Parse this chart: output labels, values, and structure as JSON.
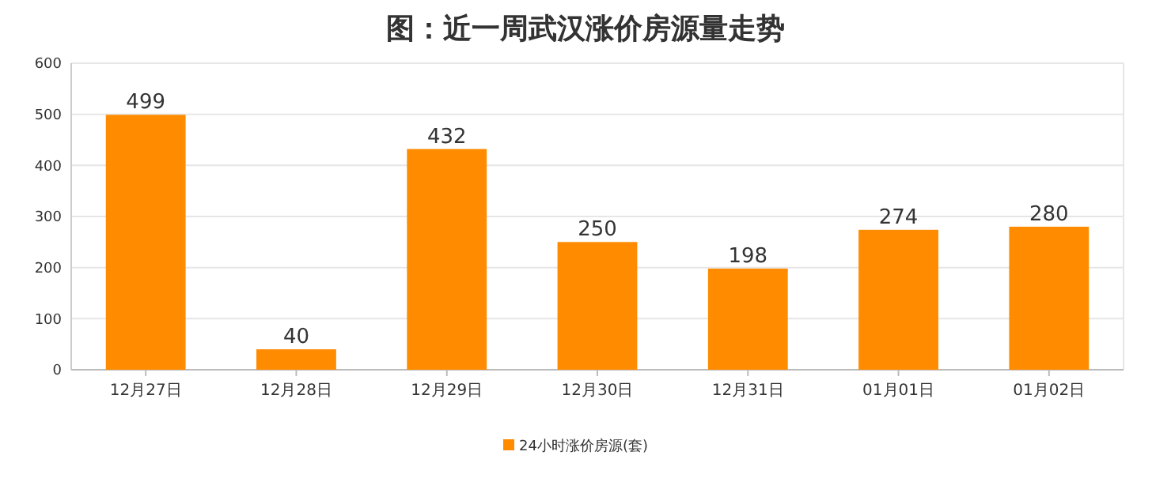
{
  "chart_data": {
    "type": "bar",
    "title": "图：近一周武汉涨价房源量走势",
    "categories": [
      "12月27日",
      "12月28日",
      "12月29日",
      "12月30日",
      "12月31日",
      "01月01日",
      "01月02日"
    ],
    "series": [
      {
        "name": "24小时涨价房源(套)",
        "color": "#ff8c00",
        "values": [
          499,
          40,
          432,
          250,
          198,
          274,
          280
        ]
      }
    ],
    "ylim": [
      0,
      600
    ],
    "yticks": [
      0,
      100,
      200,
      300,
      400,
      500,
      600
    ],
    "grid": "y",
    "legend": "bottom",
    "data_labels": true
  }
}
